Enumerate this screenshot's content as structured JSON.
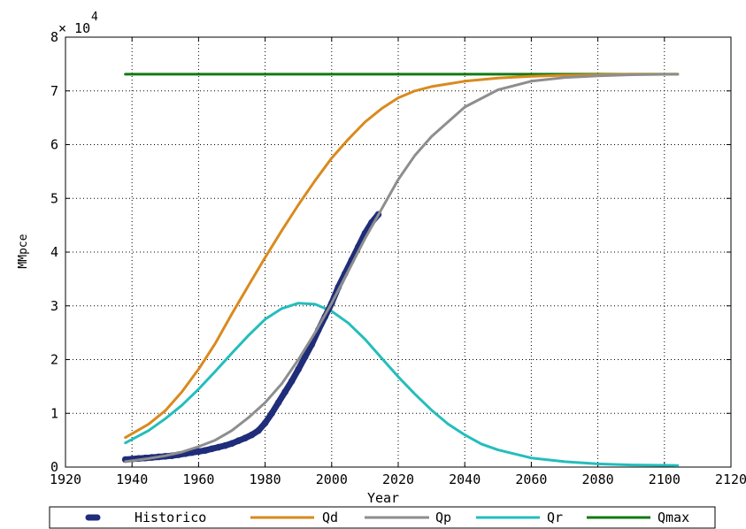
{
  "chart_data": {
    "type": "line",
    "xlabel": "Year",
    "ylabel": "MMpce",
    "exponent_label": "× 10",
    "exponent_power": "4",
    "xlim": [
      1920,
      2120
    ],
    "ylim": [
      0,
      8
    ],
    "xticks": [
      "1920",
      "1940",
      "1960",
      "1980",
      "2000",
      "2020",
      "2040",
      "2060",
      "2080",
      "2100",
      "2120"
    ],
    "yticks": [
      "0",
      "1",
      "2",
      "3",
      "4",
      "5",
      "6",
      "7",
      "8"
    ],
    "grid": true,
    "legend_position": "bottom",
    "series": [
      {
        "name": "Historico",
        "color": "#1f2d7a",
        "style": "markers",
        "x": [
          1938,
          1940,
          1942,
          1944,
          1946,
          1948,
          1950,
          1952,
          1954,
          1956,
          1958,
          1960,
          1962,
          1964,
          1966,
          1968,
          1970,
          1972,
          1974,
          1976,
          1978,
          1980,
          1982,
          1984,
          1986,
          1988,
          1990,
          1992,
          1994,
          1996,
          1998,
          2000,
          2002,
          2004,
          2006,
          2008,
          2010,
          2012,
          2014
        ],
        "y": [
          0.14,
          0.15,
          0.16,
          0.17,
          0.18,
          0.19,
          0.2,
          0.21,
          0.23,
          0.25,
          0.27,
          0.29,
          0.31,
          0.34,
          0.37,
          0.4,
          0.44,
          0.49,
          0.54,
          0.6,
          0.68,
          0.82,
          1.0,
          1.2,
          1.4,
          1.6,
          1.82,
          2.05,
          2.28,
          2.55,
          2.8,
          3.05,
          3.35,
          3.6,
          3.85,
          4.1,
          4.35,
          4.55,
          4.7
        ]
      },
      {
        "name": "Qd",
        "color": "#d98a1e",
        "style": "line",
        "x": [
          1938,
          1940,
          1945,
          1950,
          1955,
          1960,
          1965,
          1970,
          1975,
          1980,
          1985,
          1990,
          1995,
          2000,
          2005,
          2010,
          2015,
          2020,
          2025,
          2030,
          2040,
          2050,
          2060,
          2070,
          2080,
          2090,
          2104
        ],
        "y": [
          0.55,
          0.62,
          0.8,
          1.05,
          1.4,
          1.82,
          2.3,
          2.85,
          3.38,
          3.9,
          4.4,
          4.88,
          5.33,
          5.75,
          6.1,
          6.42,
          6.67,
          6.87,
          7.0,
          7.08,
          7.18,
          7.24,
          7.27,
          7.29,
          7.3,
          7.31,
          7.31
        ]
      },
      {
        "name": "Qp",
        "color": "#8e8e8e",
        "style": "line",
        "x": [
          1938,
          1945,
          1950,
          1955,
          1960,
          1965,
          1970,
          1975,
          1980,
          1985,
          1990,
          1995,
          2000,
          2005,
          2010,
          2015,
          2020,
          2025,
          2030,
          2040,
          2050,
          2060,
          2070,
          2080,
          2090,
          2104
        ],
        "y": [
          0.1,
          0.16,
          0.21,
          0.28,
          0.38,
          0.5,
          0.68,
          0.92,
          1.2,
          1.55,
          2.0,
          2.5,
          3.05,
          3.65,
          4.25,
          4.8,
          5.35,
          5.8,
          6.15,
          6.7,
          7.02,
          7.18,
          7.25,
          7.28,
          7.3,
          7.31
        ]
      },
      {
        "name": "Qr",
        "color": "#24bdbd",
        "style": "line",
        "x": [
          1938,
          1945,
          1950,
          1955,
          1960,
          1965,
          1970,
          1975,
          1980,
          1985,
          1990,
          1995,
          2000,
          2005,
          2010,
          2015,
          2020,
          2025,
          2030,
          2035,
          2040,
          2045,
          2050,
          2060,
          2070,
          2080,
          2090,
          2104
        ],
        "y": [
          0.45,
          0.68,
          0.9,
          1.15,
          1.45,
          1.78,
          2.12,
          2.45,
          2.75,
          2.95,
          3.05,
          3.03,
          2.9,
          2.68,
          2.38,
          2.03,
          1.68,
          1.36,
          1.06,
          0.8,
          0.6,
          0.43,
          0.32,
          0.17,
          0.1,
          0.06,
          0.04,
          0.03
        ]
      },
      {
        "name": "Qmax",
        "color": "#127a12",
        "style": "line",
        "x": [
          1938,
          2104
        ],
        "y": [
          7.31,
          7.31
        ]
      }
    ]
  }
}
